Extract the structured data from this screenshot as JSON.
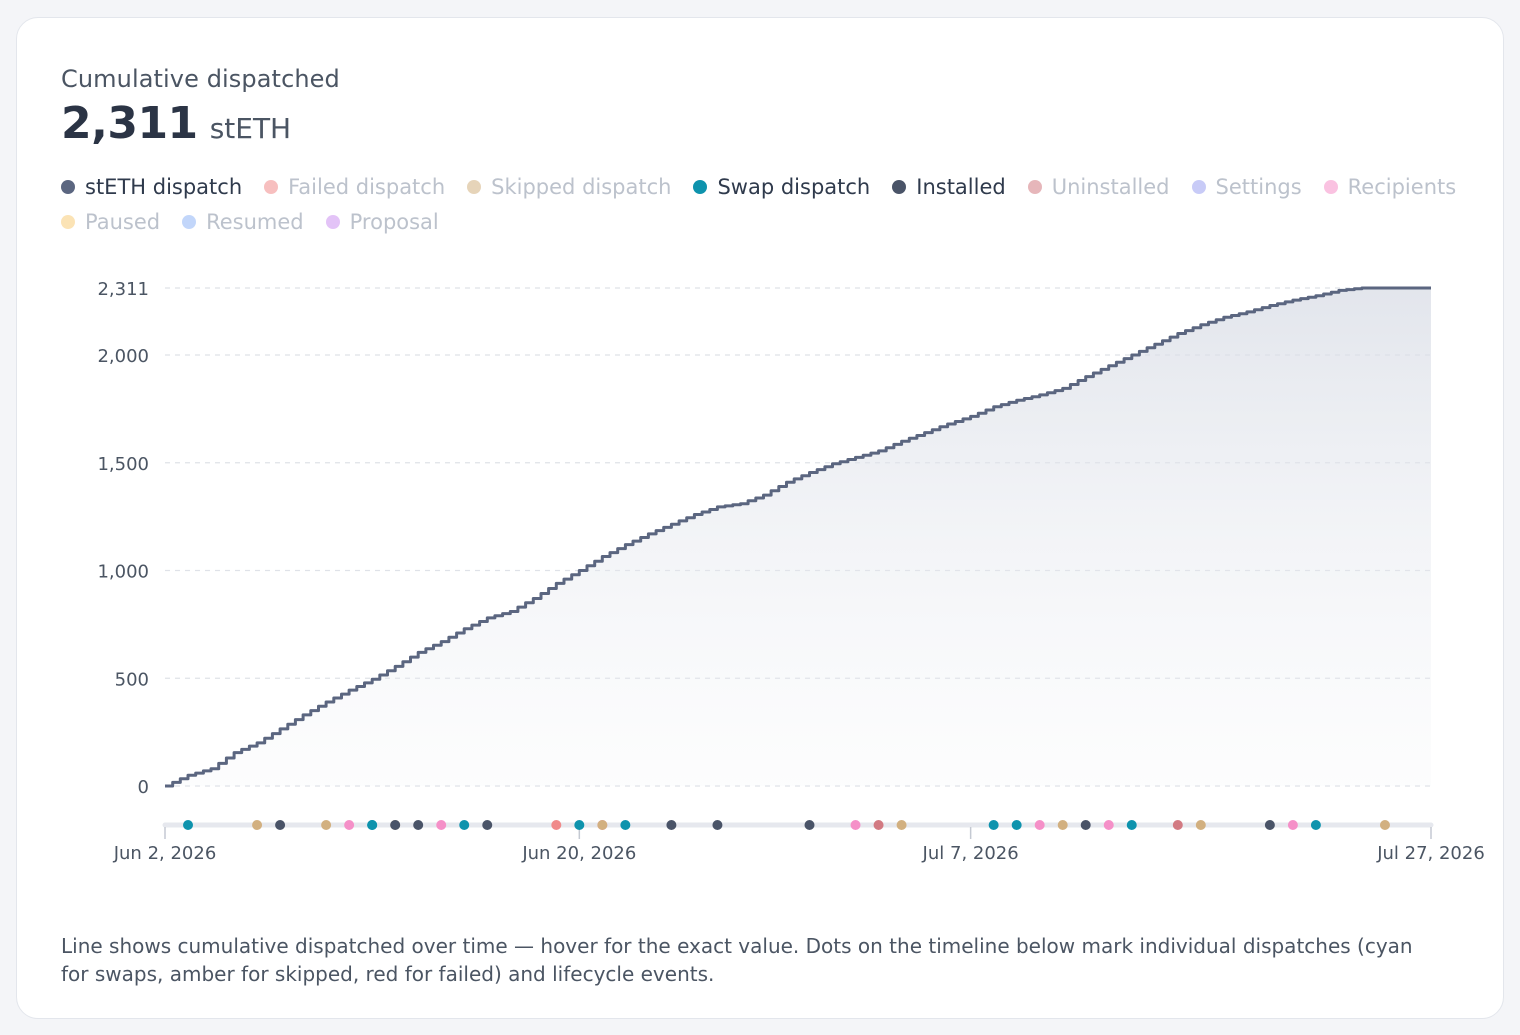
{
  "card": {
    "title": "Cumulative dispatched",
    "value": "2,311",
    "unit": "stETH",
    "caption": "Line shows cumulative dispatched over time — hover for the exact value. Dots on the timeline below mark individual dispatches (cyan for swaps, amber for skipped, red for failed) and lifecycle events."
  },
  "legend": [
    {
      "label": "stETH dispatch",
      "color": "#5b6680",
      "active": true
    },
    {
      "label": "Failed dispatch",
      "color": "#f08a8a",
      "active": false
    },
    {
      "label": "Skipped dispatch",
      "color": "#d2b080",
      "active": false
    },
    {
      "label": "Swap dispatch",
      "color": "#0e93ad",
      "active": true
    },
    {
      "label": "Installed",
      "color": "#4a5468",
      "active": true
    },
    {
      "label": "Uninstalled",
      "color": "#d27a82",
      "active": false
    },
    {
      "label": "Settings",
      "color": "#9aa0f0",
      "active": false
    },
    {
      "label": "Recipients",
      "color": "#f590c8",
      "active": false
    },
    {
      "label": "Paused",
      "color": "#f8cc78",
      "active": false
    },
    {
      "label": "Resumed",
      "color": "#90b4f6",
      "active": false
    },
    {
      "label": "Proposal",
      "color": "#cc92f0",
      "active": false
    }
  ],
  "chart_data": {
    "type": "area",
    "title": "Cumulative dispatched",
    "unit": "stETH",
    "xlim": [
      "2026-06-02",
      "2026-07-27"
    ],
    "ylim": [
      0,
      2311
    ],
    "y_ticks": [
      "0",
      "500",
      "1,000",
      "1,500",
      "2,000",
      "2,311"
    ],
    "y_tick_values": [
      0,
      500,
      1000,
      1500,
      2000,
      2311
    ],
    "x_ticks": [
      "Jun 2, 2026",
      "Jun 20, 2026",
      "Jul 7, 2026",
      "Jul 27, 2026"
    ],
    "x_tick_dates": [
      "2026-06-02",
      "2026-06-20",
      "2026-07-07",
      "2026-07-27"
    ],
    "grid": true,
    "line_color": "#5b6680",
    "series": [
      {
        "values": [
          [
            "2026-06-02",
            0
          ],
          [
            "2026-06-03",
            50
          ],
          [
            "2026-06-04",
            80
          ],
          [
            "2026-06-05",
            155
          ],
          [
            "2026-06-06",
            200
          ],
          [
            "2026-06-07",
            265
          ],
          [
            "2026-06-08",
            330
          ],
          [
            "2026-06-09",
            390
          ],
          [
            "2026-06-10",
            445
          ],
          [
            "2026-06-11",
            495
          ],
          [
            "2026-06-12",
            555
          ],
          [
            "2026-06-13",
            620
          ],
          [
            "2026-06-14",
            670
          ],
          [
            "2026-06-15",
            730
          ],
          [
            "2026-06-16",
            780
          ],
          [
            "2026-06-17",
            810
          ],
          [
            "2026-06-18",
            870
          ],
          [
            "2026-06-19",
            940
          ],
          [
            "2026-06-20",
            1000
          ],
          [
            "2026-06-21",
            1065
          ],
          [
            "2026-06-22",
            1120
          ],
          [
            "2026-06-23",
            1170
          ],
          [
            "2026-06-24",
            1215
          ],
          [
            "2026-06-25",
            1260
          ],
          [
            "2026-06-26",
            1295
          ],
          [
            "2026-06-27",
            1310
          ],
          [
            "2026-06-28",
            1350
          ],
          [
            "2026-06-29",
            1410
          ],
          [
            "2026-06-30",
            1455
          ],
          [
            "2026-07-01",
            1495
          ],
          [
            "2026-07-02",
            1525
          ],
          [
            "2026-07-03",
            1555
          ],
          [
            "2026-07-04",
            1600
          ],
          [
            "2026-07-05",
            1640
          ],
          [
            "2026-07-06",
            1680
          ],
          [
            "2026-07-07",
            1715
          ],
          [
            "2026-07-08",
            1760
          ],
          [
            "2026-07-09",
            1790
          ],
          [
            "2026-07-10",
            1815
          ],
          [
            "2026-07-11",
            1845
          ],
          [
            "2026-07-12",
            1900
          ],
          [
            "2026-07-13",
            1950
          ],
          [
            "2026-07-14",
            2000
          ],
          [
            "2026-07-15",
            2050
          ],
          [
            "2026-07-16",
            2100
          ],
          [
            "2026-07-17",
            2140
          ],
          [
            "2026-07-18",
            2175
          ],
          [
            "2026-07-19",
            2200
          ],
          [
            "2026-07-20",
            2230
          ],
          [
            "2026-07-21",
            2255
          ],
          [
            "2026-07-22",
            2275
          ],
          [
            "2026-07-23",
            2300
          ],
          [
            "2026-07-24",
            2311
          ],
          [
            "2026-07-27",
            2311
          ]
        ]
      }
    ],
    "events": [
      {
        "date": "2026-06-03",
        "type": "Swap dispatch",
        "color": "#0e93ad"
      },
      {
        "date": "2026-06-06",
        "type": "Skipped dispatch",
        "color": "#d2b080"
      },
      {
        "date": "2026-06-07",
        "type": "Installed",
        "color": "#4a5468"
      },
      {
        "date": "2026-06-09",
        "type": "Skipped dispatch",
        "color": "#d2b080"
      },
      {
        "date": "2026-06-10",
        "type": "Recipients",
        "color": "#f590c8"
      },
      {
        "date": "2026-06-11",
        "type": "Swap dispatch",
        "color": "#0e93ad"
      },
      {
        "date": "2026-06-11",
        "type": "Swap dispatch",
        "color": "#0e93ad"
      },
      {
        "date": "2026-06-12",
        "type": "Skipped dispatch",
        "color": "#d2b080"
      },
      {
        "date": "2026-06-12",
        "type": "Installed",
        "color": "#4a5468"
      },
      {
        "date": "2026-06-13",
        "type": "Installed",
        "color": "#4a5468"
      },
      {
        "date": "2026-06-14",
        "type": "Recipients",
        "color": "#f590c8"
      },
      {
        "date": "2026-06-15",
        "type": "Swap dispatch",
        "color": "#0e93ad"
      },
      {
        "date": "2026-06-16",
        "type": "Installed",
        "color": "#4a5468"
      },
      {
        "date": "2026-06-19",
        "type": "Failed dispatch",
        "color": "#f08a8a"
      },
      {
        "date": "2026-06-20",
        "type": "Swap dispatch",
        "color": "#0e93ad"
      },
      {
        "date": "2026-06-21",
        "type": "Recipients",
        "color": "#f590c8"
      },
      {
        "date": "2026-06-21",
        "type": "Skipped dispatch",
        "color": "#d2b080"
      },
      {
        "date": "2026-06-22",
        "type": "Swap dispatch",
        "color": "#0e93ad"
      },
      {
        "date": "2026-06-24",
        "type": "Installed",
        "color": "#4a5468"
      },
      {
        "date": "2026-06-26",
        "type": "Installed",
        "color": "#4a5468"
      },
      {
        "date": "2026-06-30",
        "type": "Installed",
        "color": "#4a5468"
      },
      {
        "date": "2026-07-02",
        "type": "Recipients",
        "color": "#f590c8"
      },
      {
        "date": "2026-07-03",
        "type": "Uninstalled",
        "color": "#d27a82"
      },
      {
        "date": "2026-07-04",
        "type": "Skipped dispatch",
        "color": "#d2b080"
      },
      {
        "date": "2026-07-08",
        "type": "Swap dispatch",
        "color": "#0e93ad"
      },
      {
        "date": "2026-07-09",
        "type": "Swap dispatch",
        "color": "#0e93ad"
      },
      {
        "date": "2026-07-10",
        "type": "Recipients",
        "color": "#f590c8"
      },
      {
        "date": "2026-07-11",
        "type": "Skipped dispatch",
        "color": "#d2b080"
      },
      {
        "date": "2026-07-12",
        "type": "Installed",
        "color": "#4a5468"
      },
      {
        "date": "2026-07-13",
        "type": "Recipients",
        "color": "#f590c8"
      },
      {
        "date": "2026-07-14",
        "type": "Swap dispatch",
        "color": "#0e93ad"
      },
      {
        "date": "2026-07-16",
        "type": "Uninstalled",
        "color": "#d27a82"
      },
      {
        "date": "2026-07-17",
        "type": "Skipped dispatch",
        "color": "#d2b080"
      },
      {
        "date": "2026-07-20",
        "type": "Installed",
        "color": "#4a5468"
      },
      {
        "date": "2026-07-21",
        "type": "Recipients",
        "color": "#f590c8"
      },
      {
        "date": "2026-07-22",
        "type": "Swap dispatch",
        "color": "#0e93ad"
      },
      {
        "date": "2026-07-25",
        "type": "Skipped dispatch",
        "color": "#d2b080"
      }
    ]
  }
}
